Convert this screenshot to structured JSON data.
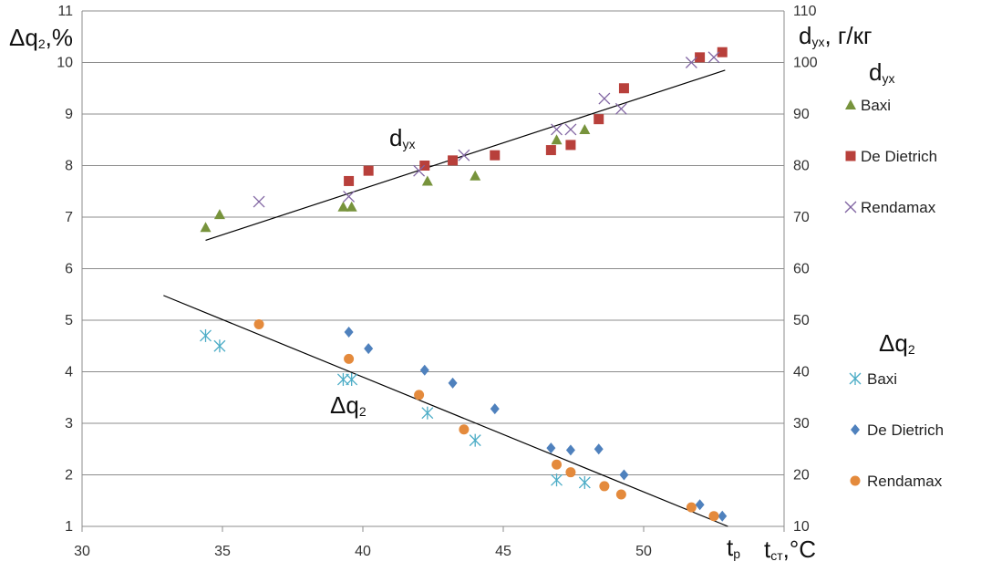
{
  "chart_data": {
    "type": "scatter",
    "left_axis": {
      "label_main": "Δq",
      "label_sub": "2",
      "label_tail": ",%",
      "range": [
        1,
        11
      ],
      "ticks": [
        "1",
        "2",
        "3",
        "4",
        "5",
        "6",
        "7",
        "8",
        "9",
        "10",
        "11"
      ]
    },
    "right_axis": {
      "label_main": "d",
      "label_sub": "ух",
      "label_tail": ", г/кг",
      "range": [
        10,
        110
      ],
      "ticks": [
        "10",
        "20",
        "30",
        "40",
        "50",
        "60",
        "70",
        "80",
        "90",
        "100",
        "110"
      ]
    },
    "x_axis": {
      "range": [
        30,
        55
      ],
      "ticks": [
        "30",
        "35",
        "40",
        "45",
        "50"
      ],
      "label_tp_main": "t",
      "label_tp_sub": "р",
      "label_main": "t",
      "label_sub": "ст",
      "label_tail": ",°C"
    },
    "grid": "horizontal",
    "annotations": {
      "dyx": {
        "main": "d",
        "sub": "ух"
      },
      "dq2": {
        "main": "Δq",
        "sub": "2"
      }
    },
    "legend_dyx": {
      "title_main": "d",
      "title_sub": "ух"
    },
    "legend_dq2": {
      "title_main": "Δq",
      "title_sub": "2"
    },
    "dyx_series": [
      {
        "name": "Baxi",
        "marker": "triangle",
        "color": "#77933c",
        "points": [
          [
            34.4,
            68
          ],
          [
            34.9,
            70.5
          ],
          [
            39.3,
            72
          ],
          [
            39.6,
            72
          ],
          [
            42.3,
            77
          ],
          [
            44.0,
            78
          ],
          [
            46.9,
            85
          ],
          [
            47.9,
            87
          ]
        ]
      },
      {
        "name": "De Dietrich",
        "marker": "square",
        "color": "#b8403b",
        "points": [
          [
            39.5,
            77
          ],
          [
            40.2,
            79
          ],
          [
            42.2,
            80
          ],
          [
            43.2,
            81
          ],
          [
            44.7,
            82
          ],
          [
            46.7,
            83
          ],
          [
            47.4,
            84
          ],
          [
            48.4,
            89
          ],
          [
            49.3,
            95
          ],
          [
            52.0,
            101
          ],
          [
            52.8,
            102
          ]
        ]
      },
      {
        "name": "Rendamax",
        "marker": "x",
        "color": "#8064a2",
        "points": [
          [
            36.3,
            73
          ],
          [
            39.5,
            74
          ],
          [
            42.0,
            79
          ],
          [
            43.6,
            82
          ],
          [
            46.9,
            87
          ],
          [
            47.4,
            87
          ],
          [
            48.6,
            93
          ],
          [
            49.2,
            91
          ],
          [
            51.7,
            100
          ],
          [
            52.5,
            101
          ]
        ]
      }
    ],
    "dq2_series": [
      {
        "name": "Baxi",
        "marker": "asterisk",
        "color": "#4bacc6",
        "points": [
          [
            34.4,
            4.7
          ],
          [
            34.9,
            4.5
          ],
          [
            39.3,
            3.85
          ],
          [
            39.6,
            3.85
          ],
          [
            42.3,
            3.2
          ],
          [
            44.0,
            2.67
          ],
          [
            46.9,
            1.9
          ],
          [
            47.9,
            1.85
          ]
        ]
      },
      {
        "name": "De Dietrich",
        "marker": "diamond",
        "color": "#4f81bd",
        "points": [
          [
            39.5,
            4.77
          ],
          [
            40.2,
            4.45
          ],
          [
            42.2,
            4.03
          ],
          [
            43.2,
            3.78
          ],
          [
            44.7,
            3.28
          ],
          [
            46.7,
            2.52
          ],
          [
            47.4,
            2.48
          ],
          [
            48.4,
            2.5
          ],
          [
            49.3,
            2.0
          ],
          [
            52.0,
            1.42
          ],
          [
            52.8,
            1.2
          ]
        ]
      },
      {
        "name": "Rendamax",
        "marker": "circle",
        "color": "#e48a3c",
        "points": [
          [
            36.3,
            4.92
          ],
          [
            39.5,
            4.25
          ],
          [
            42.0,
            3.55
          ],
          [
            43.6,
            2.88
          ],
          [
            46.9,
            2.2
          ],
          [
            47.4,
            2.05
          ],
          [
            48.6,
            1.78
          ],
          [
            49.2,
            1.62
          ],
          [
            51.7,
            1.37
          ],
          [
            52.5,
            1.2
          ]
        ]
      }
    ],
    "trend_dyx": [
      [
        34.4,
        65.5
      ],
      [
        52.9,
        98.5
      ]
    ],
    "trend_dq2": [
      [
        32.9,
        5.48
      ],
      [
        53.0,
        1.0
      ]
    ]
  }
}
